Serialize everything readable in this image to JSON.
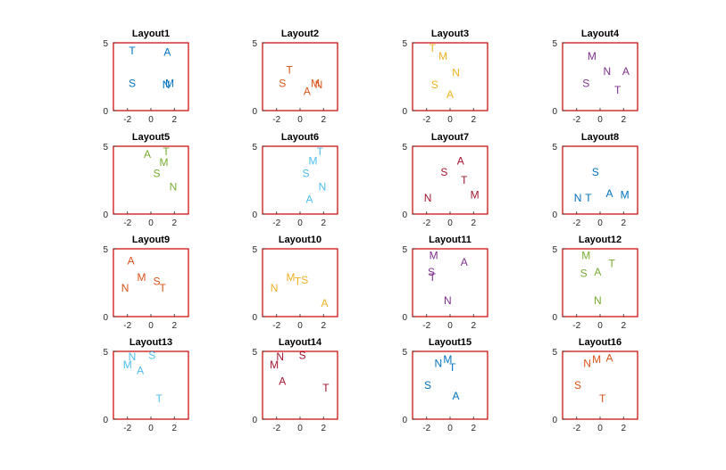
{
  "chart_data": {
    "type": "scatter",
    "marker": "text",
    "xlim": [
      -3.2,
      3.2
    ],
    "ylim": [
      0,
      5
    ],
    "xticks": [
      "-2",
      "0",
      "2"
    ],
    "yticks": [
      "0",
      "5"
    ],
    "axes_color": "#cc0000",
    "grid": false,
    "panels": [
      {
        "title": "Layout1",
        "color": "#0072bd",
        "points": [
          {
            "label": "T",
            "x": -1.6,
            "y": 4.4
          },
          {
            "label": "A",
            "x": 1.4,
            "y": 4.3
          },
          {
            "label": "S",
            "x": -1.6,
            "y": 2.0
          },
          {
            "label": "N",
            "x": 1.3,
            "y": 1.9
          },
          {
            "label": "M",
            "x": 1.6,
            "y": 2.0
          }
        ]
      },
      {
        "title": "Layout2",
        "color": "#d95319",
        "points": [
          {
            "label": "T",
            "x": -0.9,
            "y": 3.0
          },
          {
            "label": "S",
            "x": -1.5,
            "y": 2.0
          },
          {
            "label": "A",
            "x": 0.6,
            "y": 1.4
          },
          {
            "label": "M",
            "x": 1.3,
            "y": 2.0
          },
          {
            "label": "N",
            "x": 1.6,
            "y": 1.9
          }
        ]
      },
      {
        "title": "Layout3",
        "color": "#edb120",
        "points": [
          {
            "label": "T",
            "x": -1.5,
            "y": 4.6
          },
          {
            "label": "M",
            "x": -0.6,
            "y": 4.0
          },
          {
            "label": "N",
            "x": 0.5,
            "y": 2.8
          },
          {
            "label": "S",
            "x": -1.3,
            "y": 1.9
          },
          {
            "label": "A",
            "x": 0.0,
            "y": 1.2
          }
        ]
      },
      {
        "title": "Layout4",
        "color": "#7e2f8e",
        "points": [
          {
            "label": "M",
            "x": -0.7,
            "y": 4.0
          },
          {
            "label": "N",
            "x": 0.6,
            "y": 2.9
          },
          {
            "label": "A",
            "x": 2.2,
            "y": 2.9
          },
          {
            "label": "S",
            "x": -1.2,
            "y": 2.0
          },
          {
            "label": "T",
            "x": 1.5,
            "y": 1.5
          }
        ]
      },
      {
        "title": "Layout5",
        "color": "#77ac30",
        "points": [
          {
            "label": "A",
            "x": -0.3,
            "y": 4.4
          },
          {
            "label": "T",
            "x": 1.3,
            "y": 4.6
          },
          {
            "label": "M",
            "x": 1.1,
            "y": 3.8
          },
          {
            "label": "S",
            "x": 0.5,
            "y": 3.0
          },
          {
            "label": "N",
            "x": 1.9,
            "y": 2.0
          }
        ]
      },
      {
        "title": "Layout6",
        "color": "#4dbeee",
        "points": [
          {
            "label": "T",
            "x": 1.7,
            "y": 4.6
          },
          {
            "label": "M",
            "x": 1.1,
            "y": 3.9
          },
          {
            "label": "S",
            "x": 0.5,
            "y": 3.0
          },
          {
            "label": "N",
            "x": 1.9,
            "y": 2.0
          },
          {
            "label": "A",
            "x": 0.8,
            "y": 1.1
          }
        ]
      },
      {
        "title": "Layout7",
        "color": "#a2142f",
        "points": [
          {
            "label": "A",
            "x": 0.9,
            "y": 3.9
          },
          {
            "label": "S",
            "x": -0.5,
            "y": 3.1
          },
          {
            "label": "T",
            "x": 1.2,
            "y": 2.5
          },
          {
            "label": "M",
            "x": 2.1,
            "y": 1.4
          },
          {
            "label": "N",
            "x": -1.9,
            "y": 1.2
          }
        ]
      },
      {
        "title": "Layout8",
        "color": "#0072bd",
        "points": [
          {
            "label": "S",
            "x": -0.4,
            "y": 3.1
          },
          {
            "label": "A",
            "x": 0.8,
            "y": 1.5
          },
          {
            "label": "M",
            "x": 2.1,
            "y": 1.4
          },
          {
            "label": "N",
            "x": -1.9,
            "y": 1.2
          },
          {
            "label": "T",
            "x": -1.0,
            "y": 1.2
          }
        ]
      },
      {
        "title": "Layout9",
        "color": "#d95319",
        "points": [
          {
            "label": "A",
            "x": -1.7,
            "y": 4.1
          },
          {
            "label": "M",
            "x": -0.8,
            "y": 2.9
          },
          {
            "label": "S",
            "x": 0.5,
            "y": 2.6
          },
          {
            "label": "T",
            "x": 1.0,
            "y": 2.1
          },
          {
            "label": "N",
            "x": -2.2,
            "y": 2.1
          }
        ]
      },
      {
        "title": "Layout10",
        "color": "#edb120",
        "points": [
          {
            "label": "M",
            "x": -0.8,
            "y": 2.9
          },
          {
            "label": "T",
            "x": -0.2,
            "y": 2.6
          },
          {
            "label": "S",
            "x": 0.4,
            "y": 2.7
          },
          {
            "label": "N",
            "x": -2.2,
            "y": 2.1
          },
          {
            "label": "A",
            "x": 2.1,
            "y": 1.0
          }
        ]
      },
      {
        "title": "Layout11",
        "color": "#7e2f8e",
        "points": [
          {
            "label": "M",
            "x": -1.4,
            "y": 4.5
          },
          {
            "label": "A",
            "x": 1.2,
            "y": 4.0
          },
          {
            "label": "S",
            "x": -1.6,
            "y": 3.3
          },
          {
            "label": "T",
            "x": -1.5,
            "y": 2.9
          },
          {
            "label": "N",
            "x": -0.2,
            "y": 1.2
          }
        ]
      },
      {
        "title": "Layout12",
        "color": "#77ac30",
        "points": [
          {
            "label": "M",
            "x": -1.2,
            "y": 4.5
          },
          {
            "label": "T",
            "x": 1.0,
            "y": 3.9
          },
          {
            "label": "A",
            "x": -0.2,
            "y": 3.3
          },
          {
            "label": "S",
            "x": -1.4,
            "y": 3.2
          },
          {
            "label": "N",
            "x": -0.2,
            "y": 1.2
          }
        ]
      },
      {
        "title": "Layout13",
        "color": "#4dbeee",
        "points": [
          {
            "label": "N",
            "x": -1.6,
            "y": 4.6
          },
          {
            "label": "S",
            "x": 0.1,
            "y": 4.7
          },
          {
            "label": "M",
            "x": -2.0,
            "y": 4.0
          },
          {
            "label": "A",
            "x": -0.9,
            "y": 3.6
          },
          {
            "label": "T",
            "x": 0.7,
            "y": 1.5
          }
        ]
      },
      {
        "title": "Layout14",
        "color": "#a2142f",
        "points": [
          {
            "label": "N",
            "x": -1.7,
            "y": 4.6
          },
          {
            "label": "S",
            "x": 0.2,
            "y": 4.7
          },
          {
            "label": "M",
            "x": -2.2,
            "y": 4.0
          },
          {
            "label": "A",
            "x": -1.5,
            "y": 2.8
          },
          {
            "label": "T",
            "x": 2.2,
            "y": 2.3
          }
        ]
      },
      {
        "title": "Layout15",
        "color": "#0072bd",
        "points": [
          {
            "label": "M",
            "x": -0.2,
            "y": 4.4
          },
          {
            "label": "N",
            "x": -1.0,
            "y": 4.1
          },
          {
            "label": "T",
            "x": 0.2,
            "y": 3.8
          },
          {
            "label": "S",
            "x": -1.9,
            "y": 2.5
          },
          {
            "label": "A",
            "x": 0.5,
            "y": 1.7
          }
        ]
      },
      {
        "title": "Layout16",
        "color": "#d95319",
        "points": [
          {
            "label": "M",
            "x": -0.3,
            "y": 4.4
          },
          {
            "label": "A",
            "x": 0.8,
            "y": 4.5
          },
          {
            "label": "N",
            "x": -1.1,
            "y": 4.1
          },
          {
            "label": "S",
            "x": -1.9,
            "y": 2.5
          },
          {
            "label": "T",
            "x": 0.2,
            "y": 1.5
          }
        ]
      }
    ]
  }
}
